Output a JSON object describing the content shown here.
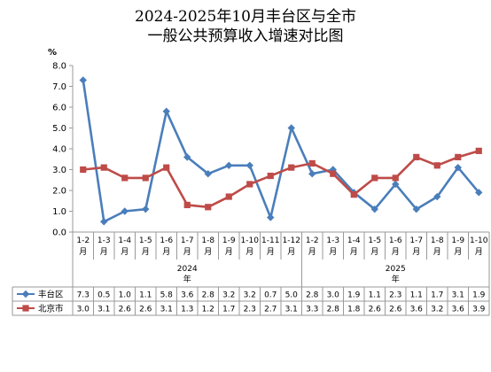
{
  "chart_data": {
    "type": "line",
    "title_line1": "2024-2025年10月丰台区与全市",
    "title_line2": "一般公共预算收入增速对比图",
    "ylabel": "%",
    "ylim": [
      0,
      8
    ],
    "yticks": [
      "0.0",
      "1.0",
      "2.0",
      "3.0",
      "4.0",
      "5.0",
      "6.0",
      "7.0",
      "8.0"
    ],
    "categories": [
      "1-2\n月",
      "1-3\n月",
      "1-4\n月",
      "1-5\n月",
      "1-6\n月",
      "1-7\n月",
      "1-8\n月",
      "1-9\n月",
      "1-10\n月",
      "1-11\n月",
      "1-12\n月",
      "1-2\n月",
      "1-3\n月",
      "1-4\n月",
      "1-5\n月",
      "1-6\n月",
      "1-7\n月",
      "1-8\n月",
      "1-9\n月",
      "1-10\n月"
    ],
    "groups": [
      {
        "label": "2024\n年",
        "count": 11
      },
      {
        "label": "2025\n年",
        "count": 9
      }
    ],
    "series": [
      {
        "name": "丰台区",
        "color": "#4a7ebb",
        "marker": "diamond",
        "values": [
          7.3,
          0.5,
          1.0,
          1.1,
          5.8,
          3.6,
          2.8,
          3.2,
          3.2,
          0.7,
          5.0,
          2.8,
          3.0,
          1.9,
          1.1,
          2.3,
          1.1,
          1.7,
          3.1,
          1.9
        ],
        "labels": [
          "7.3",
          "0.5",
          "1.0",
          "1.1",
          "5.8",
          "3.6",
          "2.8",
          "3.2",
          "3.2",
          "0.7",
          "5.0",
          "2.8",
          "3.0",
          "1.9",
          "1.1",
          "2.3",
          "1.1",
          "1.7",
          "3.1",
          "1.9"
        ]
      },
      {
        "name": "北京市",
        "color": "#be4b48",
        "marker": "square",
        "values": [
          3.0,
          3.1,
          2.6,
          2.6,
          3.1,
          1.3,
          1.2,
          1.7,
          2.3,
          2.7,
          3.1,
          3.3,
          2.8,
          1.8,
          2.6,
          2.6,
          3.6,
          3.2,
          3.6,
          3.9
        ],
        "labels": [
          "3.0",
          "3.1",
          "2.6",
          "2.6",
          "3.1",
          "1.3",
          "1.2",
          "1.7",
          "2.3",
          "2.7",
          "3.1",
          "3.3",
          "2.8",
          "1.8",
          "2.6",
          "2.6",
          "3.6",
          "3.2",
          "3.6",
          "3.9"
        ]
      }
    ],
    "grid": false,
    "legend": "data-table"
  }
}
